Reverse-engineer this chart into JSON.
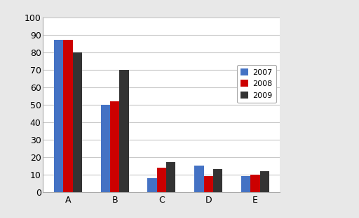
{
  "categories": [
    "A",
    "B",
    "C",
    "D",
    "E"
  ],
  "series": {
    "2007": [
      87,
      50,
      8,
      15,
      9
    ],
    "2008": [
      87,
      52,
      14,
      9,
      10
    ],
    "2009": [
      80,
      70,
      17,
      13,
      12
    ]
  },
  "colors": {
    "2007": "#4472C4",
    "2008": "#CC0000",
    "2009": "#333333"
  },
  "ylim": [
    0,
    100
  ],
  "yticks": [
    0,
    10,
    20,
    30,
    40,
    50,
    60,
    70,
    80,
    90,
    100
  ],
  "legend_labels": [
    "2007",
    "2008",
    "2009"
  ],
  "bar_width": 0.2,
  "outer_bg": "#e8e8e8",
  "plot_bg_color": "#ffffff",
  "grid_color": "#c8c8c8"
}
